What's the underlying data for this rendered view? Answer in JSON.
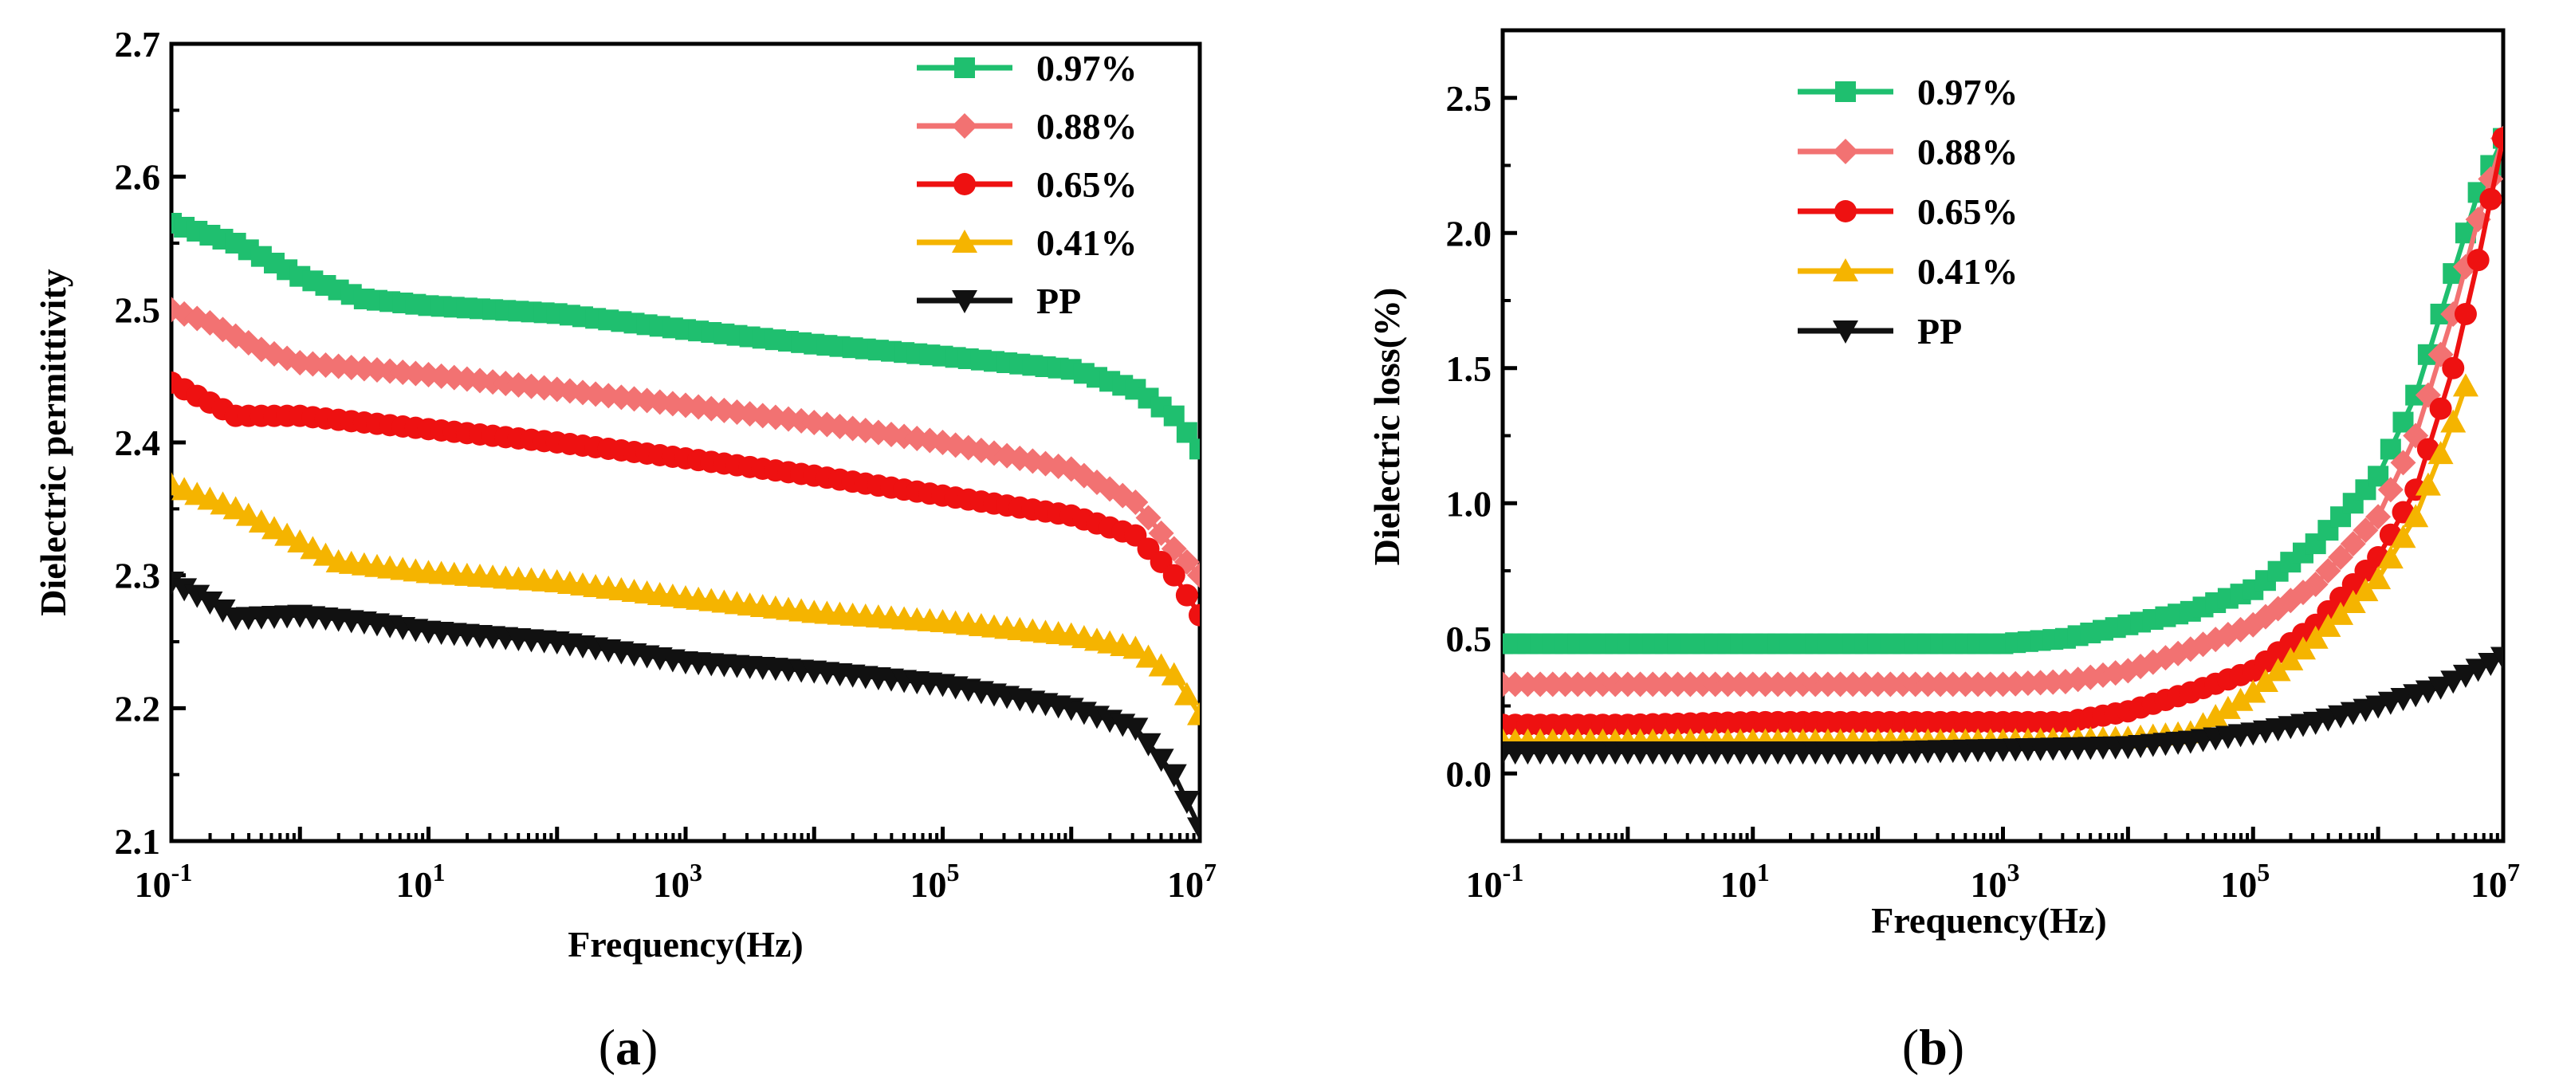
{
  "chart_data": [
    {
      "id": "a",
      "type": "line",
      "panel_label": "(a)",
      "panel_label_letter": "a",
      "xlabel": "Frequency(Hz)",
      "ylabel": "Dielectric permittivity",
      "xscale": "log",
      "xlim": [
        0.1,
        10000000
      ],
      "ylim": [
        2.1,
        2.7
      ],
      "yticks": [
        2.1,
        2.2,
        2.3,
        2.4,
        2.5,
        2.6,
        2.7
      ],
      "ytick_labels": [
        "2.1",
        "2.2",
        "2.3",
        "2.4",
        "2.5",
        "2.6",
        "2.7"
      ],
      "xticks": [
        {
          "value": 0.1,
          "base": "10",
          "exp": "-1"
        },
        {
          "value": 10,
          "base": "10",
          "exp": "1"
        },
        {
          "value": 1000,
          "base": "10",
          "exp": "3"
        },
        {
          "value": 100000,
          "base": "10",
          "exp": "5"
        },
        {
          "value": 10000000,
          "base": "10",
          "exp": "7"
        }
      ],
      "legend_position": "top-right",
      "series": [
        {
          "name": "0.97%",
          "color": "#1fbf6f",
          "marker": "square",
          "points": [
            [
              -1,
              2.565
            ],
            [
              -0.5,
              2.55
            ],
            [
              0,
              2.525
            ],
            [
              0.5,
              2.508
            ],
            [
              1,
              2.503
            ],
            [
              2,
              2.497
            ],
            [
              3,
              2.485
            ],
            [
              4,
              2.474
            ],
            [
              5,
              2.465
            ],
            [
              6,
              2.455
            ],
            [
              6.5,
              2.44
            ],
            [
              6.8,
              2.42
            ],
            [
              7,
              2.395
            ]
          ]
        },
        {
          "name": "0.88%",
          "color": "#f27272",
          "marker": "diamond",
          "points": [
            [
              -1,
              2.5
            ],
            [
              -0.7,
              2.49
            ],
            [
              -0.3,
              2.47
            ],
            [
              0,
              2.46
            ],
            [
              1,
              2.451
            ],
            [
              2,
              2.44
            ],
            [
              3,
              2.428
            ],
            [
              4,
              2.415
            ],
            [
              5,
              2.4
            ],
            [
              6,
              2.38
            ],
            [
              6.5,
              2.355
            ],
            [
              6.8,
              2.32
            ],
            [
              7,
              2.3
            ]
          ]
        },
        {
          "name": "0.65%",
          "color": "#ee1111",
          "marker": "circle",
          "points": [
            [
              -1,
              2.445
            ],
            [
              -0.7,
              2.43
            ],
            [
              -0.5,
              2.42
            ],
            [
              0,
              2.42
            ],
            [
              1,
              2.41
            ],
            [
              2,
              2.4
            ],
            [
              3,
              2.388
            ],
            [
              4,
              2.375
            ],
            [
              5,
              2.36
            ],
            [
              6,
              2.345
            ],
            [
              6.5,
              2.33
            ],
            [
              6.8,
              2.3
            ],
            [
              7,
              2.27
            ]
          ]
        },
        {
          "name": "0.41%",
          "color": "#f5b400",
          "marker": "triangle-up",
          "points": [
            [
              -1,
              2.368
            ],
            [
              -0.5,
              2.35
            ],
            [
              -0.1,
              2.33
            ],
            [
              0.3,
              2.31
            ],
            [
              1,
              2.302
            ],
            [
              2,
              2.295
            ],
            [
              3,
              2.283
            ],
            [
              4,
              2.272
            ],
            [
              5,
              2.265
            ],
            [
              6,
              2.255
            ],
            [
              6.5,
              2.245
            ],
            [
              6.8,
              2.225
            ],
            [
              7,
              2.195
            ]
          ]
        },
        {
          "name": "PP",
          "color": "#111111",
          "marker": "triangle-down",
          "points": [
            [
              -1,
              2.295
            ],
            [
              -0.7,
              2.28
            ],
            [
              -0.5,
              2.268
            ],
            [
              0,
              2.27
            ],
            [
              0.5,
              2.265
            ],
            [
              1,
              2.258
            ],
            [
              2,
              2.25
            ],
            [
              3,
              2.235
            ],
            [
              4,
              2.228
            ],
            [
              5,
              2.218
            ],
            [
              6,
              2.2
            ],
            [
              6.5,
              2.185
            ],
            [
              6.8,
              2.15
            ],
            [
              7,
              2.11
            ]
          ]
        }
      ]
    },
    {
      "id": "b",
      "type": "line",
      "panel_label": "(b)",
      "panel_label_letter": "b",
      "xlabel": "Frequency(Hz)",
      "ylabel": "Dielectric loss(%)",
      "xscale": "log",
      "xlim": [
        0.1,
        10000000
      ],
      "ylim": [
        -0.25,
        2.75
      ],
      "yticks": [
        0.0,
        0.5,
        1.0,
        1.5,
        2.0,
        2.5
      ],
      "ytick_labels": [
        "0.0",
        "0.5",
        "1.0",
        "1.5",
        "2.0",
        "2.5"
      ],
      "xticks": [
        {
          "value": 0.1,
          "base": "10",
          "exp": "-1"
        },
        {
          "value": 10,
          "base": "10",
          "exp": "1"
        },
        {
          "value": 1000,
          "base": "10",
          "exp": "3"
        },
        {
          "value": 100000,
          "base": "10",
          "exp": "5"
        },
        {
          "value": 10000000,
          "base": "10",
          "exp": "7"
        }
      ],
      "legend_position": "top-left",
      "series": [
        {
          "name": "0.97%",
          "color": "#1fbf6f",
          "marker": "square",
          "points": [
            [
              -1,
              0.48
            ],
            [
              0,
              0.48
            ],
            [
              1,
              0.48
            ],
            [
              2,
              0.48
            ],
            [
              3,
              0.48
            ],
            [
              3.5,
              0.5
            ],
            [
              4,
              0.55
            ],
            [
              4.5,
              0.6
            ],
            [
              5,
              0.68
            ],
            [
              5.5,
              0.85
            ],
            [
              6,
              1.1
            ],
            [
              6.3,
              1.4
            ],
            [
              6.6,
              1.85
            ],
            [
              6.8,
              2.15
            ],
            [
              7,
              2.35
            ]
          ]
        },
        {
          "name": "0.88%",
          "color": "#f27272",
          "marker": "diamond",
          "points": [
            [
              -1,
              0.33
            ],
            [
              0,
              0.33
            ],
            [
              1,
              0.33
            ],
            [
              2,
              0.33
            ],
            [
              3,
              0.33
            ],
            [
              3.5,
              0.34
            ],
            [
              4,
              0.38
            ],
            [
              4.5,
              0.46
            ],
            [
              5,
              0.55
            ],
            [
              5.5,
              0.7
            ],
            [
              6,
              0.95
            ],
            [
              6.3,
              1.25
            ],
            [
              6.6,
              1.7
            ],
            [
              6.8,
              2.05
            ],
            [
              7,
              2.35
            ]
          ]
        },
        {
          "name": "0.65%",
          "color": "#ee1111",
          "marker": "circle",
          "points": [
            [
              -1,
              0.18
            ],
            [
              0,
              0.18
            ],
            [
              1,
              0.19
            ],
            [
              2,
              0.19
            ],
            [
              3,
              0.19
            ],
            [
              3.5,
              0.19
            ],
            [
              4,
              0.23
            ],
            [
              4.5,
              0.3
            ],
            [
              5,
              0.38
            ],
            [
              5.5,
              0.55
            ],
            [
              6,
              0.8
            ],
            [
              6.3,
              1.05
            ],
            [
              6.6,
              1.5
            ],
            [
              6.8,
              1.9
            ],
            [
              7,
              2.35
            ]
          ]
        },
        {
          "name": "0.41%",
          "color": "#f5b400",
          "marker": "triangle-up",
          "points": [
            [
              -1,
              0.12
            ],
            [
              0,
              0.12
            ],
            [
              1,
              0.12
            ],
            [
              2,
              0.12
            ],
            [
              3,
              0.12
            ],
            [
              4,
              0.13
            ],
            [
              4.5,
              0.15
            ],
            [
              5,
              0.3
            ],
            [
              5.5,
              0.5
            ],
            [
              6,
              0.72
            ],
            [
              6.3,
              0.95
            ],
            [
              6.6,
              1.3
            ],
            [
              6.75,
              1.5
            ]
          ]
        },
        {
          "name": "PP",
          "color": "#111111",
          "marker": "triangle-down",
          "points": [
            [
              -1,
              0.08
            ],
            [
              0,
              0.08
            ],
            [
              1,
              0.08
            ],
            [
              2,
              0.08
            ],
            [
              3,
              0.09
            ],
            [
              4,
              0.1
            ],
            [
              4.5,
              0.12
            ],
            [
              5,
              0.15
            ],
            [
              5.5,
              0.19
            ],
            [
              6,
              0.25
            ],
            [
              6.5,
              0.32
            ],
            [
              7,
              0.43
            ]
          ]
        }
      ]
    }
  ]
}
